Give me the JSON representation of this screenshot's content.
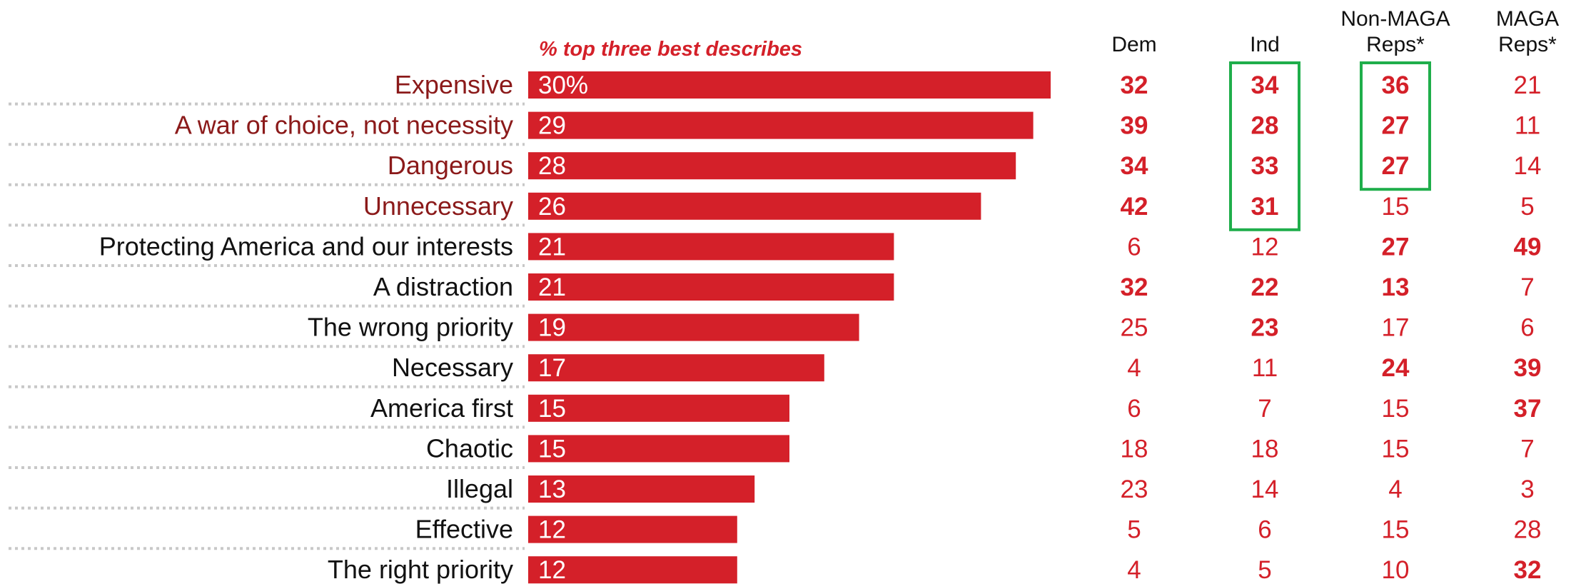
{
  "chart_data": {
    "type": "bar",
    "subtitle": "% top three best describes",
    "categories": [
      "Expensive",
      "A war of choice, not necessity",
      "Dangerous",
      "Unnecessary",
      "Protecting America and our interests",
      "A distraction",
      "The wrong priority",
      "Necessary",
      "America first",
      "Chaotic",
      "Illegal",
      "Effective",
      "The right priority"
    ],
    "values": [
      30,
      29,
      28,
      26,
      21,
      21,
      19,
      17,
      15,
      15,
      13,
      12,
      12
    ],
    "value_labels": [
      "30%",
      "29",
      "28",
      "26",
      "21",
      "21",
      "19",
      "17",
      "15",
      "15",
      "13",
      "12",
      "12"
    ],
    "highlighted_categories": [
      0,
      1,
      2,
      3
    ],
    "columns": [
      {
        "header": [
          "Dem"
        ],
        "values": [
          32,
          39,
          34,
          42,
          6,
          32,
          25,
          4,
          6,
          18,
          23,
          5,
          4
        ],
        "bold": [
          true,
          true,
          true,
          true,
          false,
          true,
          false,
          false,
          false,
          false,
          false,
          false,
          false
        ]
      },
      {
        "header": [
          "Ind"
        ],
        "values": [
          34,
          28,
          33,
          31,
          12,
          22,
          23,
          11,
          7,
          18,
          14,
          6,
          5
        ],
        "bold": [
          true,
          true,
          true,
          true,
          false,
          true,
          true,
          false,
          false,
          false,
          false,
          false,
          false
        ]
      },
      {
        "header": [
          "Non-MAGA",
          "Reps*"
        ],
        "values": [
          36,
          27,
          27,
          15,
          27,
          13,
          17,
          24,
          15,
          15,
          4,
          15,
          10
        ],
        "bold": [
          true,
          true,
          true,
          false,
          true,
          true,
          false,
          true,
          false,
          false,
          false,
          false,
          false
        ]
      },
      {
        "header": [
          "MAGA",
          "Reps*"
        ],
        "values": [
          21,
          11,
          14,
          5,
          49,
          7,
          6,
          39,
          37,
          7,
          3,
          28,
          32
        ],
        "bold": [
          false,
          false,
          false,
          false,
          true,
          false,
          false,
          true,
          true,
          false,
          false,
          false,
          true
        ]
      }
    ],
    "highlight_boxes": [
      {
        "column": 1,
        "from_row": 0,
        "to_row": 3
      },
      {
        "column": 2,
        "from_row": 0,
        "to_row": 2
      }
    ],
    "colors": {
      "bar": "#d42029",
      "highlight_text": "#8b1a1a",
      "text": "#111111",
      "cell": "#d42029",
      "box": "#1fae4b",
      "dotted_rule": "#c8c8c8"
    }
  }
}
